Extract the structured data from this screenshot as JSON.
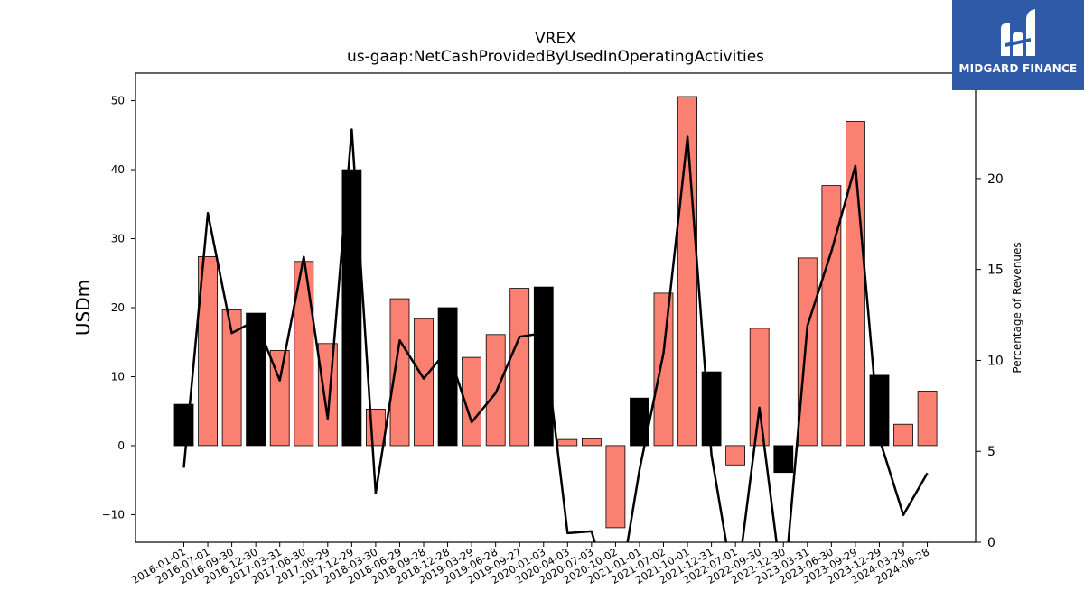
{
  "chart_data": {
    "type": "bar",
    "title": "VREX",
    "subtitle": "us-gaap:NetCashProvidedByUsedInOperatingActivities",
    "ylabel": "USDm",
    "y2label": "Percentage of Revenues",
    "ylim": [
      -14,
      54
    ],
    "y2lim": [
      0,
      25.8
    ],
    "yticks": [
      -10,
      0,
      10,
      20,
      30,
      40,
      50
    ],
    "y2ticks": [
      0,
      5,
      10,
      15,
      20
    ],
    "grid": false,
    "categories": [
      "2016-01-01",
      "2016-07-01",
      "2016-09-30",
      "2016-12-30",
      "2017-03-31",
      "2017-06-30",
      "2017-09-29",
      "2017-12-29",
      "2018-03-30",
      "2018-06-29",
      "2018-09-28",
      "2018-12-28",
      "2019-03-29",
      "2019-06-28",
      "2019-09-27",
      "2020-01-03",
      "2020-04-03",
      "2020-07-03",
      "2020-10-02",
      "2021-01-01",
      "2021-07-02",
      "2021-10-01",
      "2021-12-31",
      "2022-07-01",
      "2022-09-30",
      "2022-12-30",
      "2023-03-31",
      "2023-06-30",
      "2023-09-29",
      "2023-12-29",
      "2024-03-29",
      "2024-06-28"
    ],
    "series": [
      {
        "type": "bar",
        "values": [
          6.0,
          27.4,
          19.7,
          19.2,
          13.8,
          26.7,
          14.8,
          40.0,
          5.3,
          21.3,
          18.4,
          20.0,
          12.8,
          16.1,
          22.8,
          23.0,
          0.9,
          1.0,
          -11.9,
          6.9,
          22.1,
          50.6,
          10.7,
          -2.8,
          17.0,
          -3.9,
          27.2,
          37.7,
          47.0,
          10.2,
          3.1,
          7.9
        ],
        "colors": [
          "#000000",
          "#fa8072",
          "#fa8072",
          "#000000",
          "#fa8072",
          "#fa8072",
          "#fa8072",
          "#000000",
          "#fa8072",
          "#fa8072",
          "#fa8072",
          "#000000",
          "#fa8072",
          "#fa8072",
          "#fa8072",
          "#000000",
          "#fa8072",
          "#fa8072",
          "#fa8072",
          "#000000",
          "#fa8072",
          "#fa8072",
          "#000000",
          "#fa8072",
          "#fa8072",
          "#000000",
          "#fa8072",
          "#fa8072",
          "#fa8072",
          "#000000",
          "#fa8072",
          "#fa8072"
        ]
      },
      {
        "type": "line",
        "axis": "right",
        "color": "#000000",
        "values": [
          4.1,
          18.1,
          11.5,
          12.2,
          8.9,
          15.7,
          6.8,
          22.7,
          2.7,
          11.1,
          9.0,
          10.6,
          6.6,
          8.2,
          11.3,
          11.5,
          0.5,
          0.6,
          -4.0,
          4.0,
          10.4,
          22.3,
          4.8,
          -3.0,
          7.4,
          -3.0,
          11.9,
          16.0,
          20.7,
          5.7,
          1.5,
          3.8
        ]
      }
    ]
  },
  "logo": {
    "text": "MIDGARD FINANCE"
  }
}
